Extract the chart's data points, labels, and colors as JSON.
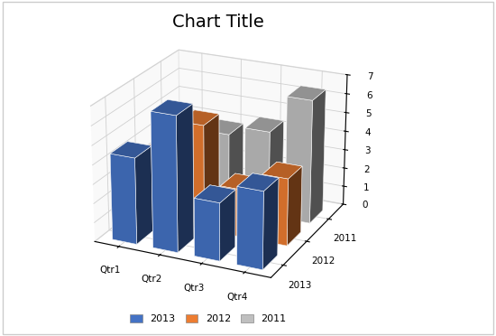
{
  "title": "Chart Title",
  "categories": [
    "Qtr1",
    "Qtr2",
    "Qtr3",
    "Qtr4"
  ],
  "series": {
    "2013": [
      4.5,
      7.0,
      3.0,
      4.0
    ],
    "2012": [
      3.5,
      5.5,
      2.5,
      3.5
    ],
    "2011": [
      4.3,
      4.0,
      4.5,
      6.5
    ]
  },
  "series_order": [
    "2013",
    "2012",
    "2011"
  ],
  "colors": {
    "2013": "#4472C4",
    "2012": "#ED7D31",
    "2011": "#BFBFBF"
  },
  "zlim": [
    0,
    7
  ],
  "zticks": [
    0,
    1,
    2,
    3,
    4,
    5,
    6,
    7
  ],
  "bar_width": 0.6,
  "bar_depth": 0.6,
  "elev": 22,
  "azim": -65,
  "background_color": "#ffffff",
  "title_fontsize": 14,
  "grid_color": "#d0d0d0",
  "pane_color": "#f0f0f0"
}
